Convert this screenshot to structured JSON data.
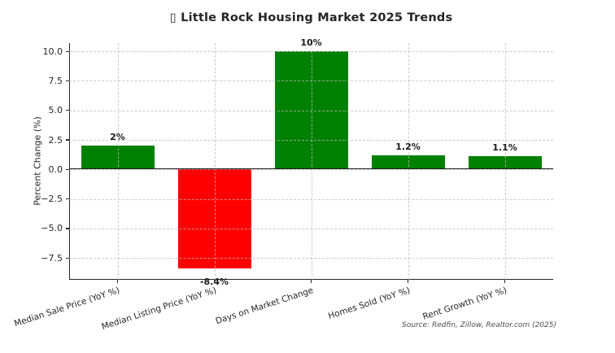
{
  "header": {
    "icon_glyph": "▯",
    "title": "Little Rock Housing Market 2025 Trends"
  },
  "chart_data": {
    "type": "bar",
    "title": "▯ Little Rock Housing Market 2025 Trends",
    "categories": [
      "Median Sale Price (YoY %)",
      "Median Listing Price (YoY %)",
      "Days on Market Change",
      "Homes Sold (YoY %)",
      "Rent Growth (YoY %)"
    ],
    "values": [
      2,
      -8.4,
      10,
      1.2,
      1.1
    ],
    "bar_labels": [
      "2%",
      "-8.4%",
      "10%",
      "1.2%",
      "1.1%"
    ],
    "bar_colors": [
      "#008000",
      "#ff0000",
      "#008000",
      "#008000",
      "#008000"
    ],
    "positive_color": "#008000",
    "negative_color": "#ff0000",
    "ylabel": "Percent Change (%)",
    "yticks": [
      10.0,
      7.5,
      5.0,
      2.5,
      0.0,
      -2.5,
      -5.0,
      -7.5
    ],
    "ytick_labels": [
      "10.0",
      "7.5",
      "5.0",
      "2.5",
      "0.0",
      "−2.5",
      "−5.0",
      "−7.5"
    ],
    "ylim": [
      -9.35,
      10.7
    ],
    "grid": true,
    "grid_style": "dashed",
    "zero_line": true,
    "legend": "none",
    "source_note": "Source: Redfin, Zillow, Realtor.com (2025)"
  }
}
